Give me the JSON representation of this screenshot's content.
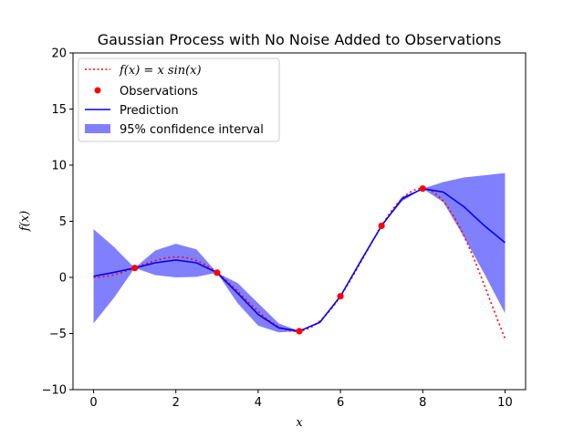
{
  "chart_data": {
    "type": "line",
    "title": "Gaussian Process with No Noise Added to Observations",
    "xlabel": "x",
    "ylabel": "f(x)",
    "xlim": [
      -0.5,
      10.5
    ],
    "ylim": [
      -10,
      20
    ],
    "xticks": [
      0,
      2,
      4,
      6,
      8,
      10
    ],
    "yticks": [
      -10,
      -5,
      0,
      5,
      10,
      15,
      20
    ],
    "grid": false,
    "legend_position": "top-left",
    "legend": {
      "true_function": "f(x) = x sin(x)",
      "observations": "Observations",
      "prediction": "Prediction",
      "confidence": "95% confidence interval"
    },
    "colors": {
      "true_function": "#ff0000",
      "observations": "#ff0000",
      "prediction": "#0000ff",
      "confidence": "#8080ff"
    },
    "observations": {
      "x": [
        1,
        3,
        5,
        6,
        7,
        8
      ],
      "y": [
        0.84,
        0.42,
        -4.79,
        -1.68,
        4.6,
        7.91
      ]
    },
    "prediction": {
      "x": [
        0,
        0.5,
        1,
        1.5,
        2,
        2.5,
        3,
        3.5,
        4,
        4.5,
        5,
        5.5,
        6,
        6.5,
        7,
        7.5,
        8,
        8.5,
        9,
        9.5,
        10
      ],
      "y": [
        0.1,
        0.45,
        0.84,
        1.3,
        1.55,
        1.3,
        0.42,
        -1.4,
        -3.3,
        -4.5,
        -4.79,
        -4.0,
        -1.68,
        1.5,
        4.6,
        7.0,
        7.91,
        7.6,
        6.3,
        4.6,
        3.1
      ],
      "lower": [
        -4.1,
        -1.8,
        0.84,
        0.2,
        0.0,
        0.05,
        0.42,
        -2.3,
        -4.3,
        -4.9,
        -4.79,
        -4.1,
        -1.68,
        1.4,
        4.6,
        6.8,
        7.91,
        6.7,
        3.6,
        0.3,
        -3.2
      ],
      "upper": [
        4.3,
        2.7,
        0.84,
        2.4,
        3.0,
        2.5,
        0.42,
        -0.5,
        -2.3,
        -4.1,
        -4.79,
        -3.9,
        -1.68,
        1.6,
        4.6,
        7.2,
        7.91,
        8.5,
        8.9,
        9.1,
        9.3
      ]
    },
    "true_function_samples": 120
  }
}
